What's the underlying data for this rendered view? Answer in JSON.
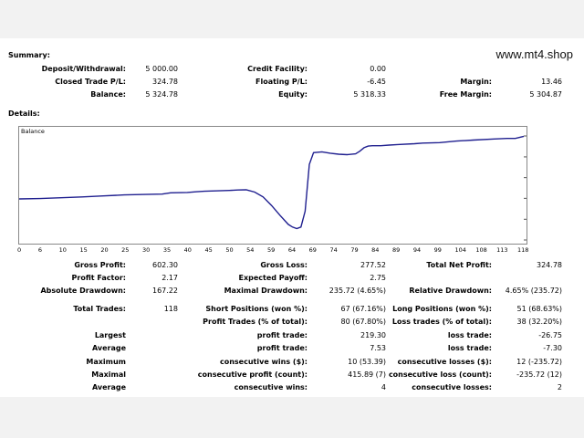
{
  "watermark": "www.mt4.shop",
  "summary": {
    "heading": "Summary:",
    "rows": [
      [
        {
          "label": "Deposit/Withdrawal:",
          "value": "5 000.00"
        },
        {
          "label": "Credit Facility:",
          "value": "0.00"
        },
        {
          "label": "",
          "value": ""
        }
      ],
      [
        {
          "label": "Closed Trade P/L:",
          "value": "324.78"
        },
        {
          "label": "Floating P/L:",
          "value": "-6.45"
        },
        {
          "label": "Margin:",
          "value": "13.46"
        }
      ],
      [
        {
          "label": "Balance:",
          "value": "5 324.78"
        },
        {
          "label": "Equity:",
          "value": "5 318.33"
        },
        {
          "label": "Free Margin:",
          "value": "5 304.87"
        }
      ]
    ]
  },
  "details_heading": "Details:",
  "chart_data": {
    "type": "line",
    "title": "Balance",
    "x_ticks": [
      "0",
      "6",
      "10",
      "15",
      "20",
      "25",
      "30",
      "35",
      "40",
      "45",
      "50",
      "54",
      "59",
      "64",
      "69",
      "74",
      "79",
      "84",
      "89",
      "94",
      "99",
      "104",
      "108",
      "113",
      "118"
    ],
    "y_ticks": [
      "5320",
      "5217",
      "5115",
      "5013",
      "4910",
      "4808"
    ],
    "ylim": [
      4808,
      5320
    ],
    "xlim": [
      0,
      120
    ],
    "series": [
      {
        "color": "#1f1f8f",
        "x": [
          0,
          5,
          10,
          15,
          20,
          25,
          30,
          34,
          36,
          40,
          42,
          44,
          50,
          52,
          54,
          56,
          58,
          60,
          62,
          64,
          65,
          66,
          67,
          68,
          69,
          70,
          72,
          74,
          76,
          78,
          80,
          81,
          82,
          83,
          84,
          86,
          88,
          90,
          94,
          96,
          100,
          104,
          108,
          113,
          116,
          118,
          120
        ],
        "y": [
          5010,
          5012,
          5016,
          5020,
          5025,
          5030,
          5032,
          5034,
          5040,
          5042,
          5045,
          5048,
          5052,
          5054,
          5055,
          5044,
          5020,
          4978,
          4930,
          4885,
          4872,
          4864,
          4872,
          4950,
          5180,
          5238,
          5242,
          5235,
          5230,
          5228,
          5232,
          5245,
          5262,
          5270,
          5272,
          5272,
          5275,
          5278,
          5282,
          5285,
          5287,
          5295,
          5300,
          5305,
          5308,
          5308,
          5318
        ]
      }
    ]
  },
  "stats": [
    [
      {
        "label": "Gross Profit:",
        "value": "602.30"
      },
      {
        "label": "Gross Loss:",
        "value": "277.52"
      },
      {
        "label": "Total Net Profit:",
        "value": "324.78"
      }
    ],
    [
      {
        "label": "Profit Factor:",
        "value": "2.17"
      },
      {
        "label": "Expected Payoff:",
        "value": "2.75"
      },
      {
        "label": "",
        "value": ""
      }
    ],
    [
      {
        "label": "Absolute Drawdown:",
        "value": "167.22"
      },
      {
        "label": "Maximal Drawdown:",
        "value": "235.72 (4.65%)"
      },
      {
        "label": "Relative Drawdown:",
        "value": "4.65% (235.72)"
      }
    ]
  ],
  "trades": [
    [
      {
        "label": "Total Trades:",
        "value": "118"
      },
      {
        "label": "Short Positions (won %):",
        "value": "67 (67.16%)"
      },
      {
        "label": "Long Positions (won %):",
        "value": "51 (68.63%)"
      }
    ],
    [
      {
        "label": "",
        "value": ""
      },
      {
        "label": "Profit Trades (% of total):",
        "value": "80 (67.80%)"
      },
      {
        "label": "Loss trades (% of total):",
        "value": "38 (32.20%)"
      }
    ],
    [
      {
        "label": "Largest",
        "value": ""
      },
      {
        "label": "profit trade:",
        "value": "219.30"
      },
      {
        "label": "loss trade:",
        "value": "-26.75"
      }
    ],
    [
      {
        "label": "Average",
        "value": ""
      },
      {
        "label": "profit trade:",
        "value": "7.53"
      },
      {
        "label": "loss trade:",
        "value": "-7.30"
      }
    ],
    [
      {
        "label": "Maximum",
        "value": ""
      },
      {
        "label": "consecutive wins ($):",
        "value": "10 (53.39)"
      },
      {
        "label": "consecutive losses ($):",
        "value": "12 (-235.72)"
      }
    ],
    [
      {
        "label": "Maximal",
        "value": ""
      },
      {
        "label": "consecutive profit (count):",
        "value": "415.89 (7)"
      },
      {
        "label": "consecutive loss (count):",
        "value": "-235.72 (12)"
      }
    ],
    [
      {
        "label": "Average",
        "value": ""
      },
      {
        "label": "consecutive wins:",
        "value": "4"
      },
      {
        "label": "consecutive losses:",
        "value": "2"
      }
    ]
  ]
}
